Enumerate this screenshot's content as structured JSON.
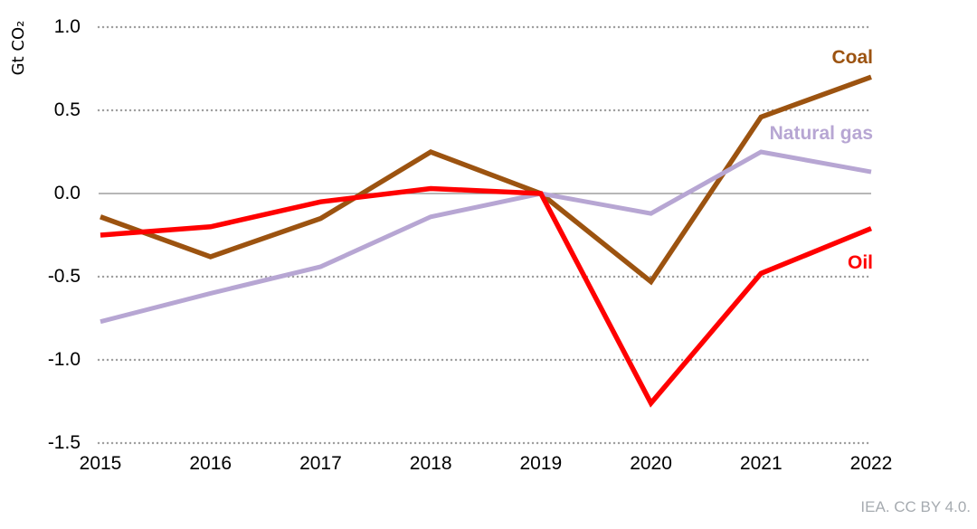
{
  "chart_data": {
    "type": "line",
    "title": "",
    "ylabel": "Gt CO₂",
    "xlabel": "",
    "x": [
      2015,
      2016,
      2017,
      2018,
      2019,
      2020,
      2021,
      2022
    ],
    "yticks": [
      "1.0",
      "0.5",
      "0.0",
      "-0.5",
      "-1.0",
      "-1.5"
    ],
    "ylim": [
      -1.5,
      1.0
    ],
    "grid": "horizontal dotted gridlines, solid line at zero",
    "legend_position": "inline labels at right end of lines",
    "series": [
      {
        "name": "Coal",
        "color": "#9C5310",
        "values": [
          -0.14,
          -0.38,
          -0.15,
          0.25,
          0.0,
          -0.53,
          0.46,
          0.7
        ]
      },
      {
        "name": "Natural gas",
        "color": "#B7A6D3",
        "values": [
          -0.77,
          -0.6,
          -0.44,
          -0.14,
          0.0,
          -0.12,
          0.25,
          0.13
        ]
      },
      {
        "name": "Oil",
        "color": "#FF0000",
        "values": [
          -0.25,
          -0.2,
          -0.05,
          0.03,
          0.0,
          -1.26,
          -0.48,
          -0.21
        ]
      }
    ]
  },
  "colors": {
    "grid_dots": "#9E9E9E",
    "zero_line": "#8C8C8C",
    "tick_text": "#000000",
    "background": "#FFFFFF"
  },
  "footer": {
    "attribution": "IEA. CC BY 4.0."
  }
}
